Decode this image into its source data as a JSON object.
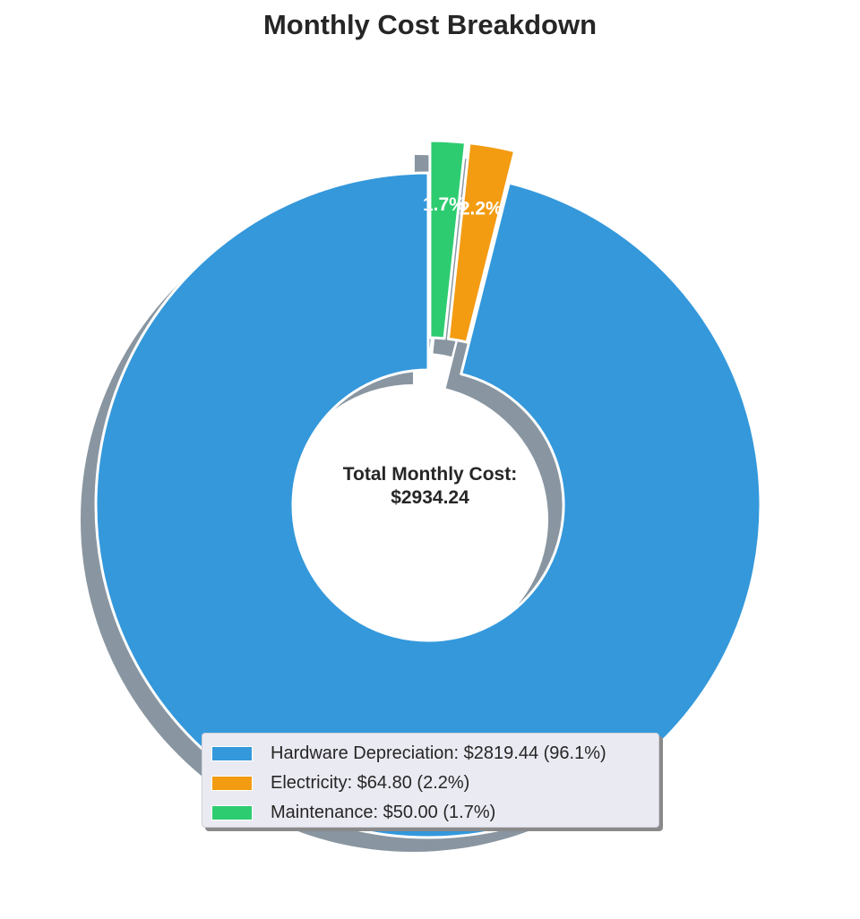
{
  "title": "Monthly Cost Breakdown",
  "center_label": {
    "line1": "Total Monthly Cost:",
    "line2": "$2934.24"
  },
  "chart_data": {
    "type": "pie",
    "variant": "donut",
    "title": "Monthly Cost Breakdown",
    "slices": [
      {
        "label": "Hardware Depreciation",
        "value": 2819.44,
        "percent": 96.1,
        "pct_label": "96.1%",
        "color": "#3498db",
        "exploded": false
      },
      {
        "label": "Electricity",
        "value": 64.8,
        "percent": 2.2,
        "pct_label": "2.2%",
        "color": "#f39c12",
        "exploded": true
      },
      {
        "label": "Maintenance",
        "value": 50.0,
        "percent": 1.7,
        "pct_label": "1.7%",
        "color": "#2ecc71",
        "exploded": true
      }
    ],
    "total": 2934.24,
    "shadow": true,
    "legend_placement": "lower center"
  },
  "legend": {
    "items": [
      {
        "label": "Hardware Depreciation: $2819.44 (96.1%)",
        "color": "#3498db"
      },
      {
        "label": "Electricity: $64.80 (2.2%)",
        "color": "#f39c12"
      },
      {
        "label": "Maintenance: $50.00 (1.7%)",
        "color": "#2ecc71"
      }
    ]
  }
}
